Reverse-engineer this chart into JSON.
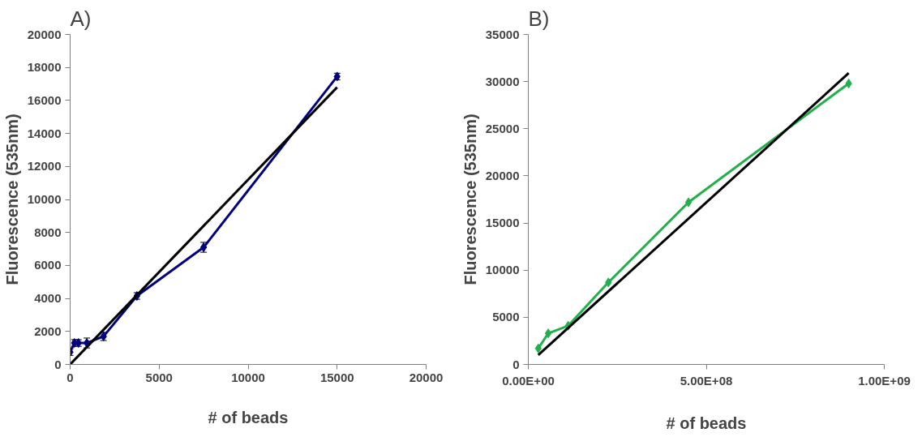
{
  "chart_data": [
    {
      "type": "line",
      "title": "A)",
      "xlabel": "# of beads",
      "ylabel": "Fluorescence (535nm)",
      "xlim": [
        0,
        20000
      ],
      "xticks": [
        0,
        5000,
        10000,
        15000,
        20000
      ],
      "ylim": [
        0,
        20000
      ],
      "yticks": [
        0,
        2000,
        4000,
        6000,
        8000,
        10000,
        12000,
        14000,
        16000,
        18000,
        20000
      ],
      "grid": false,
      "series": [
        {
          "color": "#000080",
          "marker": "diamond",
          "x": [
            0,
            234,
            469,
            938,
            1875,
            3750,
            7500,
            15000
          ],
          "values": [
            750,
            1300,
            1300,
            1300,
            1700,
            4150,
            7100,
            17450
          ],
          "errors": [
            200,
            200,
            200,
            300,
            250,
            200,
            300,
            200
          ]
        },
        {
          "color": "#000000",
          "marker": "none",
          "x": [
            0,
            15000
          ],
          "values": [
            0,
            16800
          ]
        }
      ]
    },
    {
      "type": "line",
      "title": "B)",
      "xlabel": "# of beads",
      "ylabel": "Fluorescence (535nm)",
      "xlim": [
        0,
        1000000000
      ],
      "xticks": [
        {
          "value": 0,
          "label": "0.00E+00"
        },
        {
          "value": 500000000,
          "label": "5.00E+08"
        },
        {
          "value": 1000000000,
          "label": "1.00E+09"
        }
      ],
      "ylim": [
        0,
        35000
      ],
      "yticks": [
        0,
        5000,
        10000,
        15000,
        20000,
        25000,
        30000,
        35000
      ],
      "grid": false,
      "series": [
        {
          "color": "#22b04b",
          "marker": "diamond",
          "x": [
            28000000,
            56000000,
            112000000,
            225000000,
            450000000,
            900000000
          ],
          "values": [
            1700,
            3300,
            4100,
            8700,
            17200,
            29800
          ]
        },
        {
          "color": "#000000",
          "marker": "none",
          "x": [
            28000000,
            900000000
          ],
          "values": [
            1000,
            30900
          ]
        }
      ]
    }
  ]
}
